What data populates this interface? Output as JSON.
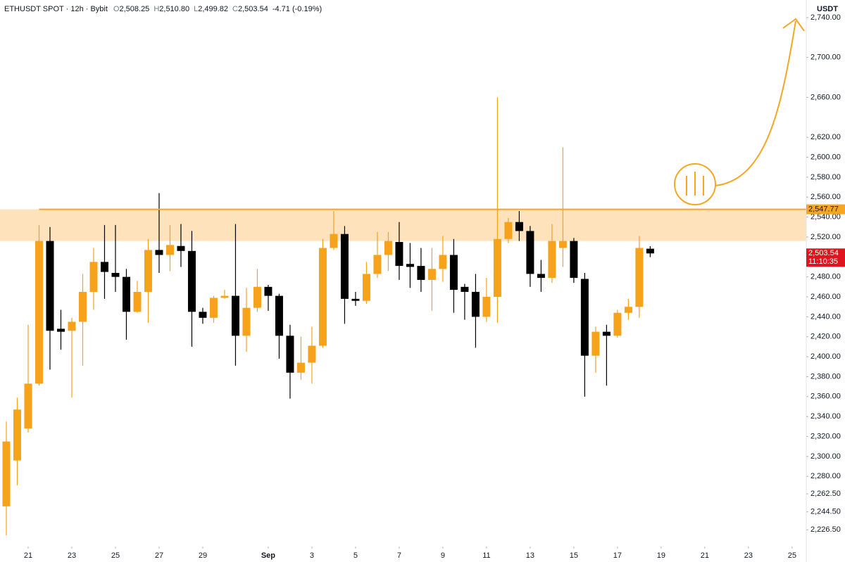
{
  "header": {
    "symbol": "ETHUSDT SPOT · 12h · Bybit",
    "ohlc": [
      {
        "key": "O",
        "value": "2,508.25"
      },
      {
        "key": "H",
        "value": "2,510.80"
      },
      {
        "key": "L",
        "value": "2,499.82"
      },
      {
        "key": "C",
        "value": "2,503.54"
      }
    ],
    "change": "-4.71 (-0.19%)"
  },
  "chart_data": {
    "type": "candlestick",
    "currency": "USDT",
    "up_color": "#f7a21b",
    "down_color": "#000000",
    "x": [
      20,
      20.5,
      21,
      21.5,
      22,
      22.5,
      23,
      23.5,
      24,
      24.5,
      25,
      25.5,
      26,
      26.5,
      27,
      27.5,
      28,
      28.5,
      29,
      29.5,
      30,
      30.5,
      31,
      31.5,
      32,
      32.5,
      33,
      33.5,
      34,
      34.5,
      35,
      35.5,
      36,
      36.5,
      37,
      37.5,
      38,
      38.5,
      39,
      39.5,
      40,
      40.5,
      41,
      41.5,
      42,
      42.5,
      43,
      43.5,
      44,
      44.5,
      45,
      45.5,
      46,
      46.5,
      47,
      47.5,
      48,
      48.5,
      49,
      49.5
    ],
    "open": [
      2250,
      2296,
      2328,
      2373,
      2516,
      2428,
      2426,
      2435,
      2465,
      2495,
      2484,
      2480,
      2445,
      2465,
      2507,
      2502,
      2511,
      2506,
      2445,
      2439,
      2459,
      2461,
      2421,
      2449,
      2470,
      2461,
      2421,
      2384,
      2394,
      2411,
      2509,
      2523,
      2458,
      2456,
      2483,
      2502,
      2515,
      2493,
      2491,
      2477,
      2488,
      2502,
      2470,
      2465,
      2440,
      2460,
      2518,
      2535,
      2526,
      2483,
      2479,
      2509,
      2516,
      2478,
      2401,
      2425,
      2421,
      2444,
      2450,
      2508.25
    ],
    "high": [
      2335,
      2359,
      2432,
      2532,
      2530,
      2447,
      2439,
      2483,
      2509,
      2532,
      2532,
      2488,
      2476,
      2518,
      2564,
      2532,
      2533,
      2526,
      2449,
      2461,
      2467,
      2533,
      2469,
      2488,
      2472,
      2463,
      2432,
      2420,
      2430,
      2518,
      2546,
      2531,
      2465,
      2495,
      2525,
      2525,
      2535,
      2514,
      2509,
      2509,
      2521,
      2518,
      2473,
      2483,
      2479,
      2660,
      2539,
      2546,
      2531,
      2497,
      2533,
      2610,
      2519,
      2484,
      2430,
      2432,
      2447,
      2458,
      2521,
      2510.8
    ],
    "low": [
      2221,
      2271,
      2324,
      2371,
      2387,
      2407,
      2359,
      2391,
      2447,
      2458,
      2465,
      2417,
      2444,
      2434,
      2484,
      2486,
      2490,
      2410,
      2433,
      2434,
      2458,
      2391,
      2405,
      2445,
      2446,
      2398,
      2358,
      2377,
      2373,
      2409,
      2507,
      2433,
      2451,
      2453,
      2479,
      2486,
      2477,
      2469,
      2465,
      2446,
      2475,
      2444,
      2437,
      2409,
      2435,
      2434,
      2514,
      2516,
      2470,
      2465,
      2474,
      2490,
      2474,
      2360,
      2384,
      2371,
      2419,
      2437,
      2439,
      2499.82
    ],
    "close": [
      2315,
      2347,
      2373,
      2516,
      2426,
      2425,
      2435,
      2465,
      2495,
      2485,
      2480,
      2445,
      2465,
      2507,
      2502,
      2512,
      2506,
      2445,
      2439,
      2459,
      2461,
      2421,
      2449,
      2470,
      2461,
      2421,
      2384,
      2394,
      2411,
      2509,
      2523,
      2458,
      2456,
      2483,
      2502,
      2516,
      2491,
      2490,
      2477,
      2488,
      2502,
      2467,
      2465,
      2440,
      2460,
      2518,
      2535,
      2526,
      2483,
      2479,
      2516,
      2516,
      2479,
      2401,
      2425,
      2421,
      2444,
      2450,
      2509,
      2503.54
    ],
    "xlim": [
      19.71,
      56.65
    ],
    "ylim": [
      2211.1,
      2757.6
    ],
    "xticks": [
      21,
      23,
      25,
      27,
      29,
      {
        "value": 32,
        "label": "Sep"
      },
      {
        "value": 34,
        "label": "3"
      },
      {
        "value": 36,
        "label": "5"
      },
      {
        "value": 38,
        "label": "7"
      },
      {
        "value": 40,
        "label": "9"
      },
      {
        "value": 42,
        "label": "11"
      },
      {
        "value": 44,
        "label": "13"
      },
      {
        "value": 46,
        "label": "15"
      },
      {
        "value": 48,
        "label": "17"
      },
      {
        "value": 50,
        "label": "19"
      },
      {
        "value": 52,
        "label": "21"
      },
      {
        "value": 54,
        "label": "23"
      },
      {
        "value": 56,
        "label": "25"
      }
    ],
    "yticks": [
      {
        "value": 2226.5,
        "label": "2,226.50"
      },
      {
        "value": 2244.5,
        "label": "2,244.50"
      },
      {
        "value": 2262.5,
        "label": "2,262.50"
      },
      {
        "value": 2280,
        "label": "2,280.00"
      },
      {
        "value": 2300,
        "label": "2,300.00"
      },
      {
        "value": 2320,
        "label": "2,320.00"
      },
      {
        "value": 2340,
        "label": "2,340.00"
      },
      {
        "value": 2360,
        "label": "2,360.00"
      },
      {
        "value": 2380,
        "label": "2,380.00"
      },
      {
        "value": 2400,
        "label": "2,400.00"
      },
      {
        "value": 2420,
        "label": "2,420.00"
      },
      {
        "value": 2440,
        "label": "2,440.00"
      },
      {
        "value": 2460,
        "label": "2,460.00"
      },
      {
        "value": 2480,
        "label": "2,480.00"
      },
      {
        "value": 2520,
        "label": "2,520.00"
      },
      {
        "value": 2540,
        "label": "2,540.00"
      },
      {
        "value": 2560,
        "label": "2,560.00"
      },
      {
        "value": 2580,
        "label": "2,580.00"
      },
      {
        "value": 2600,
        "label": "2,600.00"
      },
      {
        "value": 2620,
        "label": "2,620.00"
      },
      {
        "value": 2660,
        "label": "2,660.00"
      },
      {
        "value": 2700,
        "label": "2,700.00"
      },
      {
        "value": 2740,
        "label": "2,740.00"
      }
    ],
    "resistance": {
      "value": 2547.77,
      "value_label": "2,547.77",
      "zone_low": 2516,
      "start_x": 21.5,
      "color": "#f5a623",
      "zone_color": "#fde2bb"
    },
    "price_line": {
      "value": 2503.54,
      "value_label": "2,503.54",
      "countdown": "11:10:35",
      "color": "#e0141e"
    }
  }
}
